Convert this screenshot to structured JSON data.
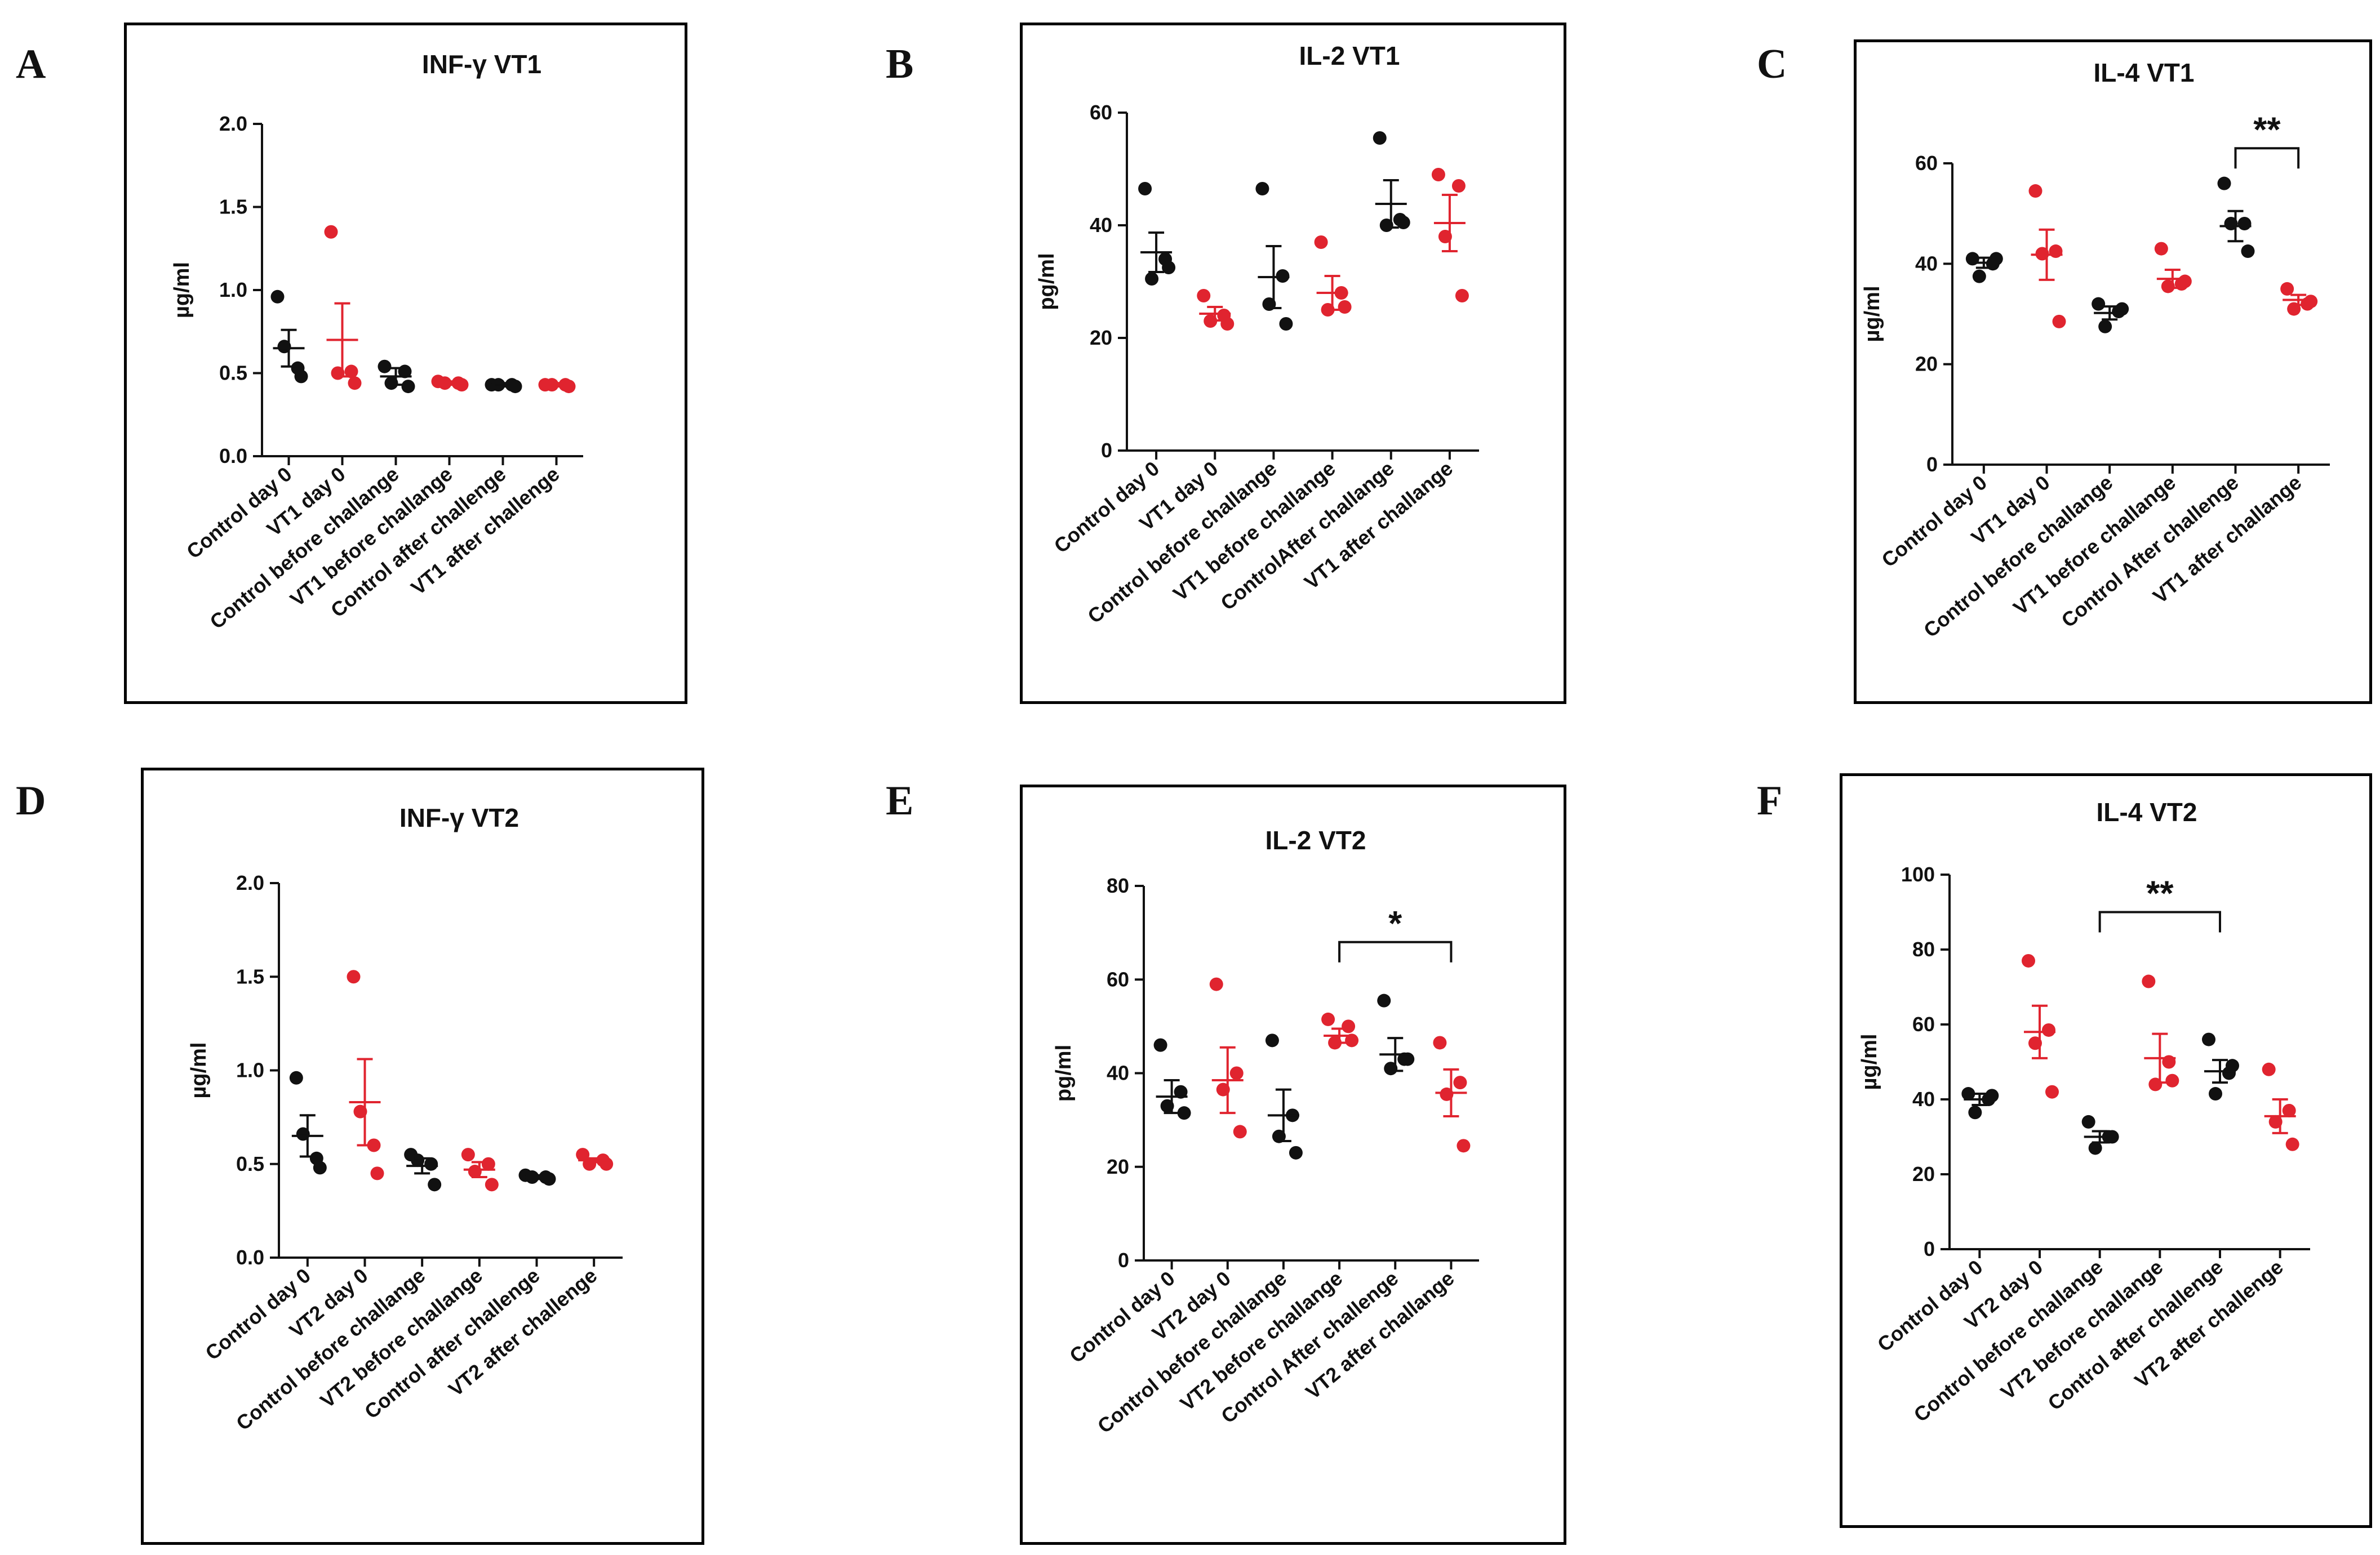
{
  "figure": {
    "panels": [
      "A",
      "B",
      "C",
      "D",
      "E",
      "F"
    ]
  },
  "colors": {
    "control": "#111111",
    "vaccine": "#e0242f"
  },
  "chart_data": [
    {
      "id": "A",
      "type": "scatter",
      "title": "INF-γ VT1",
      "ylabel": "µg/ml",
      "ylim": [
        0,
        2.0
      ],
      "yticks": [
        "0.0",
        "0.5",
        "1.0",
        "1.5",
        "2.0"
      ],
      "ytick_values": [
        0,
        0.5,
        1.0,
        1.5,
        2.0
      ],
      "categories": [
        "Control day 0",
        "VT1 day 0",
        "Control before challange",
        "VT1 before challange",
        "Control after challenge",
        "VT1 after challenge"
      ],
      "groups": [
        "control",
        "vaccine",
        "control",
        "vaccine",
        "control",
        "vaccine"
      ],
      "points": [
        [
          0.96,
          0.53,
          0.66,
          0.48
        ],
        [
          1.35,
          0.51,
          0.5,
          0.44
        ],
        [
          0.54,
          0.51,
          0.44,
          0.42
        ],
        [
          0.45,
          0.44,
          0.44,
          0.43
        ],
        [
          0.43,
          0.43,
          0.43,
          0.42
        ],
        [
          0.43,
          0.43,
          0.43,
          0.42
        ]
      ],
      "mean": [
        0.65,
        0.7,
        0.48,
        0.44,
        0.43,
        0.43
      ],
      "sem": [
        0.11,
        0.22,
        0.05,
        0.01,
        0.01,
        0.01
      ],
      "significance": []
    },
    {
      "id": "B",
      "type": "scatter",
      "title": "IL-2 VT1",
      "ylabel": "pg/ml",
      "ylim": [
        0,
        60
      ],
      "yticks": [
        "0",
        "20",
        "40",
        "60"
      ],
      "ytick_values": [
        0,
        20,
        40,
        60
      ],
      "categories": [
        "Control day 0",
        "VT1 day 0",
        "Control before challange",
        "VT1 before challange",
        "ControlAfter challange",
        "VT1 after challange"
      ],
      "groups": [
        "control",
        "vaccine",
        "control",
        "vaccine",
        "control",
        "vaccine"
      ],
      "points": [
        [
          46.5,
          34.0,
          30.5,
          32.5
        ],
        [
          27.5,
          24.0,
          23.0,
          22.5
        ],
        [
          46.5,
          31.0,
          26.0,
          22.5
        ],
        [
          37.0,
          28.0,
          25.0,
          25.5
        ],
        [
          55.5,
          41.0,
          40.0,
          40.5
        ],
        [
          49.0,
          47.0,
          38.0,
          27.5
        ]
      ],
      "mean": [
        35.2,
        24.3,
        30.8,
        28.0,
        43.8,
        40.4
      ],
      "sem": [
        3.5,
        1.2,
        5.5,
        3.0,
        4.2,
        5.0
      ],
      "significance": []
    },
    {
      "id": "C",
      "type": "scatter",
      "title": "IL-4 VT1",
      "ylabel": "µg/ml",
      "ylim": [
        0,
        60
      ],
      "yticks": [
        "0",
        "20",
        "40",
        "60"
      ],
      "ytick_values": [
        0,
        20,
        40,
        60
      ],
      "categories": [
        "Control day 0",
        "VT1 day 0",
        "Control before challange",
        "VT1 before challange",
        "Control After challenge",
        "VT1 after challange"
      ],
      "groups": [
        "control",
        "vaccine",
        "control",
        "vaccine",
        "control",
        "vaccine"
      ],
      "points": [
        [
          41.0,
          40.0,
          37.5,
          41.0
        ],
        [
          54.5,
          42.5,
          42.0,
          28.5
        ],
        [
          32.0,
          30.5,
          27.5,
          31.0
        ],
        [
          43.0,
          36.0,
          35.5,
          36.5
        ],
        [
          56.0,
          48.0,
          48.0,
          42.5
        ],
        [
          35.0,
          32.0,
          31.0,
          32.5
        ]
      ],
      "mean": [
        40.2,
        41.8,
        30.2,
        37.0,
        47.5,
        32.8
      ],
      "sem": [
        1.0,
        5.0,
        1.3,
        1.8,
        3.0,
        1.0
      ],
      "significance": [
        {
          "from": 4,
          "to": 5,
          "label": "**",
          "y": 63
        }
      ]
    },
    {
      "id": "D",
      "type": "scatter",
      "title": "INF-γ VT2",
      "ylabel": "µg/ml",
      "ylim": [
        0,
        2.0
      ],
      "yticks": [
        "0.0",
        "0.5",
        "1.0",
        "1.5",
        "2.0"
      ],
      "ytick_values": [
        0,
        0.5,
        1.0,
        1.5,
        2.0
      ],
      "categories": [
        "Control day 0",
        "VT2 day 0",
        "Control before challange",
        "VT2 before challange",
        "Control after challenge",
        "VT2 after challenge"
      ],
      "groups": [
        "control",
        "vaccine",
        "control",
        "vaccine",
        "control",
        "vaccine"
      ],
      "points": [
        [
          0.96,
          0.53,
          0.66,
          0.48
        ],
        [
          1.5,
          0.6,
          0.78,
          0.45
        ],
        [
          0.55,
          0.5,
          0.52,
          0.39
        ],
        [
          0.55,
          0.5,
          0.46,
          0.39
        ],
        [
          0.44,
          0.43,
          0.43,
          0.42
        ],
        [
          0.55,
          0.52,
          0.5,
          0.5
        ]
      ],
      "mean": [
        0.65,
        0.83,
        0.49,
        0.47,
        0.43,
        0.52
      ],
      "sem": [
        0.11,
        0.23,
        0.04,
        0.04,
        0.01,
        0.01
      ],
      "significance": []
    },
    {
      "id": "E",
      "type": "scatter",
      "title": "IL-2 VT2",
      "ylabel": "pg/ml",
      "ylim": [
        0,
        80
      ],
      "yticks": [
        "0",
        "20",
        "40",
        "60",
        "80"
      ],
      "ytick_values": [
        0,
        20,
        40,
        60,
        80
      ],
      "categories": [
        "Control day 0",
        "VT2 day 0",
        "Control before challange",
        "VT2 before challange",
        "Control After challenge",
        "VT2 after challange"
      ],
      "groups": [
        "control",
        "vaccine",
        "control",
        "vaccine",
        "control",
        "vaccine"
      ],
      "points": [
        [
          46.0,
          36.0,
          33.0,
          31.5
        ],
        [
          59.0,
          40.0,
          36.5,
          27.5
        ],
        [
          47.0,
          31.0,
          26.5,
          23.0
        ],
        [
          51.5,
          50.0,
          46.5,
          47.0
        ],
        [
          55.5,
          43.0,
          41.0,
          43.0
        ],
        [
          46.5,
          38.0,
          35.5,
          24.5
        ]
      ],
      "mean": [
        35.0,
        38.5,
        31.0,
        48.0,
        44.0,
        35.8
      ],
      "sem": [
        3.5,
        7.0,
        5.5,
        1.5,
        3.5,
        5.0
      ],
      "significance": [
        {
          "from": 3,
          "to": 5,
          "label": "*",
          "y": 68
        }
      ]
    },
    {
      "id": "F",
      "type": "scatter",
      "title": "IL-4 VT2",
      "ylabel": "µg/ml",
      "ylim": [
        0,
        100
      ],
      "yticks": [
        "0",
        "20",
        "40",
        "60",
        "80",
        "100"
      ],
      "ytick_values": [
        0,
        20,
        40,
        60,
        80,
        100
      ],
      "categories": [
        "Control day 0",
        "VT2 day 0",
        "Control before challange",
        "VT2 before challange",
        "Control after challenge",
        "VT2 after challenge"
      ],
      "groups": [
        "control",
        "vaccine",
        "control",
        "vaccine",
        "control",
        "vaccine"
      ],
      "points": [
        [
          41.5,
          40.0,
          36.5,
          41.0
        ],
        [
          77.0,
          58.5,
          55.0,
          42.0
        ],
        [
          34.0,
          30.0,
          27.0,
          30.0
        ],
        [
          71.5,
          50.0,
          44.0,
          45.0
        ],
        [
          56.0,
          47.0,
          41.5,
          49.0
        ],
        [
          48.0,
          37.0,
          34.0,
          28.0
        ]
      ],
      "mean": [
        40.0,
        58.0,
        30.0,
        51.0,
        47.5,
        35.5
      ],
      "sem": [
        1.5,
        7.0,
        1.5,
        6.5,
        3.0,
        4.5
      ],
      "significance": [
        {
          "from": 2,
          "to": 4,
          "label": "**",
          "y": 90
        }
      ]
    }
  ]
}
